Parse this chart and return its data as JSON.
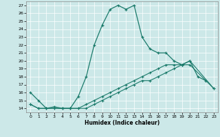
{
  "xlabel": "Humidex (Indice chaleur)",
  "background_color": "#cce8e8",
  "line_color": "#1a7a6a",
  "xlim": [
    -0.5,
    23.5
  ],
  "ylim": [
    13.5,
    27.5
  ],
  "xticks": [
    0,
    1,
    2,
    3,
    4,
    5,
    6,
    7,
    8,
    9,
    10,
    11,
    12,
    13,
    14,
    15,
    16,
    17,
    18,
    19,
    20,
    21,
    22,
    23
  ],
  "yticks": [
    14,
    15,
    16,
    17,
    18,
    19,
    20,
    21,
    22,
    23,
    24,
    25,
    26,
    27
  ],
  "series1_x": [
    0,
    1,
    2,
    3,
    4,
    5,
    6,
    7,
    8,
    9,
    10,
    11,
    12,
    13,
    14,
    15,
    16,
    17,
    18,
    19,
    20,
    21,
    22
  ],
  "series1_y": [
    16.0,
    15.0,
    14.0,
    14.2,
    14.0,
    14.0,
    15.5,
    18.0,
    22.0,
    24.5,
    26.5,
    27.0,
    26.5,
    27.0,
    23.0,
    21.5,
    21.0,
    21.0,
    20.0,
    19.5,
    20.0,
    18.0,
    17.5
  ],
  "series2_x": [
    0,
    1,
    2,
    3,
    4,
    5,
    6,
    7,
    8,
    9,
    10,
    11,
    12,
    13,
    14,
    15,
    16,
    17,
    18,
    19,
    20,
    23
  ],
  "series2_y": [
    14.5,
    14.0,
    14.0,
    14.0,
    14.0,
    14.0,
    14.0,
    14.0,
    14.5,
    15.0,
    15.5,
    16.0,
    16.5,
    17.0,
    17.5,
    17.5,
    18.0,
    18.5,
    19.0,
    19.5,
    20.0,
    16.5
  ],
  "series3_x": [
    0,
    1,
    2,
    3,
    4,
    5,
    6,
    7,
    8,
    9,
    10,
    11,
    12,
    13,
    14,
    15,
    16,
    17,
    18,
    19,
    20,
    23
  ],
  "series3_y": [
    14.5,
    14.0,
    14.0,
    14.0,
    14.0,
    14.0,
    14.0,
    14.5,
    15.0,
    15.5,
    16.0,
    16.5,
    17.0,
    17.5,
    18.0,
    18.5,
    19.0,
    19.5,
    19.5,
    19.5,
    19.5,
    16.5
  ]
}
